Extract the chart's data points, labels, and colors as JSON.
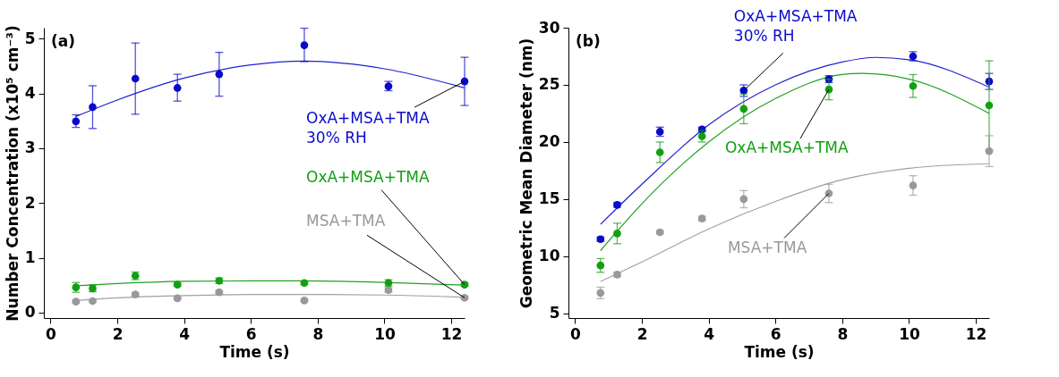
{
  "chart_data": [
    {
      "type": "scatter",
      "xlabel": "Time (s)",
      "ylabel": "Number Concentration (x10⁵ cm⁻³)",
      "annotations": [
        "(a)"
      ],
      "xlim": [
        -0.2,
        12.4
      ],
      "ylim": [
        -0.1,
        5.2
      ],
      "xticks": [
        0,
        2,
        4,
        6,
        8,
        10,
        12
      ],
      "yticks": [
        0,
        1,
        2,
        3,
        4,
        5
      ],
      "marker": "circle",
      "x": [
        0.76,
        1.26,
        2.54,
        3.8,
        5.05,
        7.6,
        10.12,
        12.4
      ],
      "series": [
        {
          "type": "line",
          "marker": "none",
          "color": "#2020d0",
          "x": [
            0.76,
            2,
            4,
            6,
            7.6,
            10,
            12.4
          ],
          "values": [
            3.58,
            3.88,
            4.28,
            4.52,
            4.59,
            4.45,
            4.1
          ]
        },
        {
          "type": "line",
          "marker": "none",
          "color": "#20a020",
          "x": [
            0.76,
            2,
            4,
            6,
            7.6,
            10,
            12.4
          ],
          "values": [
            0.49,
            0.53,
            0.57,
            0.58,
            0.58,
            0.55,
            0.5
          ]
        },
        {
          "type": "line",
          "marker": "none",
          "color": "#a0a0a0",
          "x": [
            0.76,
            2,
            4,
            6,
            7.6,
            10,
            12.4
          ],
          "values": [
            0.22,
            0.27,
            0.31,
            0.33,
            0.33,
            0.32,
            0.28
          ]
        },
        {
          "name": "OxA+MSA+TMA\n30% RH",
          "color": "#0a0acc",
          "values": [
            3.49,
            3.75,
            4.27,
            4.1,
            4.35,
            4.88,
            4.13,
            4.22
          ],
          "errors": [
            [
              3.38,
              3.61
            ],
            [
              3.36,
              4.14
            ],
            [
              3.62,
              4.92
            ],
            [
              3.86,
              4.35
            ],
            [
              3.95,
              4.75
            ],
            [
              4.58,
              5.19
            ],
            [
              4.05,
              4.22
            ],
            [
              3.78,
              4.66
            ]
          ]
        },
        {
          "name": "OxA+MSA+TMA",
          "color": "#12a012",
          "values": [
            0.46,
            0.44,
            0.67,
            0.51,
            0.58,
            0.54,
            0.54,
            0.51
          ],
          "errors": [
            0.09,
            0.06,
            0.07,
            0.03,
            0.05,
            0.03,
            0.06,
            0.03
          ]
        },
        {
          "name": "MSA+TMA",
          "color": "#999999",
          "values": [
            0.2,
            0.21,
            0.33,
            0.26,
            0.37,
            0.22,
            0.41,
            0.27
          ],
          "errors": [
            0.03,
            0.02,
            0.03,
            0.02,
            0.03,
            0.02,
            0.04,
            0.02
          ]
        }
      ]
    },
    {
      "type": "scatter",
      "xlabel": "Time (s)",
      "ylabel": "Geometric Mean Diameter (nm)",
      "annotations": [
        "(b)"
      ],
      "xlim": [
        -0.2,
        12.4
      ],
      "ylim": [
        4.6,
        30
      ],
      "xticks": [
        0,
        2,
        4,
        6,
        8,
        10,
        12
      ],
      "yticks": [
        5,
        10,
        15,
        20,
        25,
        30
      ],
      "marker": "circle",
      "x": [
        0.76,
        1.26,
        2.54,
        3.8,
        5.05,
        7.6,
        10.12,
        12.4
      ],
      "series": [
        {
          "type": "line",
          "marker": "none",
          "color": "#2020d0",
          "x": [
            0.76,
            2,
            4,
            6,
            8,
            9,
            10,
            12.4
          ],
          "values": [
            12.8,
            16.3,
            21.5,
            25.0,
            27.0,
            27.4,
            27.2,
            24.8
          ]
        },
        {
          "type": "line",
          "marker": "none",
          "color": "#20a020",
          "x": [
            0.76,
            2,
            4,
            6,
            8,
            8.6,
            10,
            12.4
          ],
          "values": [
            10.5,
            14.6,
            20.0,
            23.8,
            25.9,
            26.0,
            25.5,
            22.5
          ]
        },
        {
          "type": "line",
          "marker": "none",
          "color": "#a0a0a0",
          "x": [
            0.76,
            2,
            4,
            6,
            8,
            10,
            12.4
          ],
          "values": [
            7.8,
            9.5,
            12.4,
            14.8,
            16.7,
            17.7,
            18.1
          ]
        },
        {
          "name": "OxA+MSA+TMA\n30% RH",
          "color": "#0a0acc",
          "values": [
            11.5,
            14.5,
            20.9,
            21.1,
            24.5,
            25.5,
            27.5,
            25.3
          ],
          "errors": [
            0.2,
            0.2,
            0.4,
            0.2,
            0.5,
            0.3,
            0.4,
            0.7
          ]
        },
        {
          "name": "OxA+MSA+TMA",
          "color": "#12a012",
          "values": [
            9.2,
            12.0,
            19.1,
            20.5,
            22.9,
            24.6,
            24.9,
            23.2
          ],
          "errors": [
            0.6,
            0.9,
            0.9,
            0.5,
            1.3,
            0.9,
            1.0,
            [
              19.3,
              27.1
            ]
          ]
        },
        {
          "name": "MSA+TMA",
          "color": "#999999",
          "values": [
            6.8,
            8.4,
            12.1,
            13.3,
            15.0,
            15.5,
            16.2,
            19.2
          ],
          "errors": [
            0.5,
            0.2,
            0.15,
            0.2,
            0.75,
            0.8,
            0.85,
            1.35
          ]
        }
      ]
    }
  ]
}
